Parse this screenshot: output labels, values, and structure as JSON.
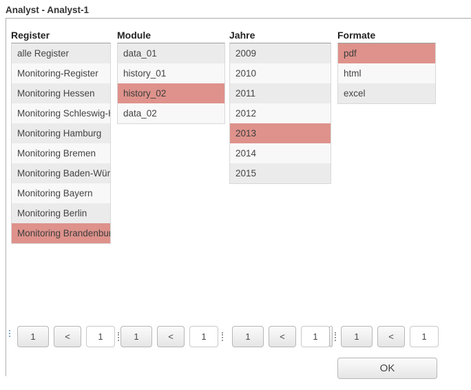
{
  "title": "Analyst - Analyst-1",
  "ok_label": "OK",
  "colors": {
    "selected_bg": "#de928b",
    "row_odd_bg": "#ebebeb",
    "row_even_bg": "#f8f8f8",
    "header_text": "#222222",
    "item_text": "#444444"
  },
  "columns": [
    {
      "id": "register",
      "header": "Register",
      "items": [
        {
          "label": "alle Register",
          "selected": false
        },
        {
          "label": "Monitoring-Register",
          "selected": false
        },
        {
          "label": "Monitoring Hessen",
          "selected": false
        },
        {
          "label": "Monitoring Schleswig-Holstein",
          "selected": false
        },
        {
          "label": "Monitoring Hamburg",
          "selected": false
        },
        {
          "label": "Monitoring Bremen",
          "selected": false
        },
        {
          "label": "Monitoring Baden-Württemberg",
          "selected": false
        },
        {
          "label": "Monitoring Bayern",
          "selected": false
        },
        {
          "label": "Monitoring Berlin",
          "selected": false
        },
        {
          "label": "Monitoring Brandenburg",
          "selected": true
        }
      ],
      "pager": {
        "first": "1",
        "prev": "<",
        "page_value": "1"
      }
    },
    {
      "id": "module",
      "header": "Module",
      "items": [
        {
          "label": "data_01",
          "selected": false
        },
        {
          "label": "history_01",
          "selected": false
        },
        {
          "label": "history_02",
          "selected": true
        },
        {
          "label": "data_02",
          "selected": false
        }
      ],
      "pager": {
        "first": "1",
        "prev": "<",
        "page_value": "1"
      }
    },
    {
      "id": "jahre",
      "header": "Jahre",
      "items": [
        {
          "label": "2009",
          "selected": false
        },
        {
          "label": "2010",
          "selected": false
        },
        {
          "label": "2011",
          "selected": false
        },
        {
          "label": "2012",
          "selected": false
        },
        {
          "label": "2013",
          "selected": true
        },
        {
          "label": "2014",
          "selected": false
        },
        {
          "label": "2015",
          "selected": false
        }
      ],
      "pager": {
        "first": "1",
        "prev": "<",
        "page_value": "1"
      }
    },
    {
      "id": "formate",
      "header": "Formate",
      "items": [
        {
          "label": "pdf",
          "selected": true
        },
        {
          "label": "html",
          "selected": false
        },
        {
          "label": "excel",
          "selected": false
        }
      ],
      "pager": {
        "first": "1",
        "prev": "<",
        "page_value": "1"
      }
    }
  ]
}
